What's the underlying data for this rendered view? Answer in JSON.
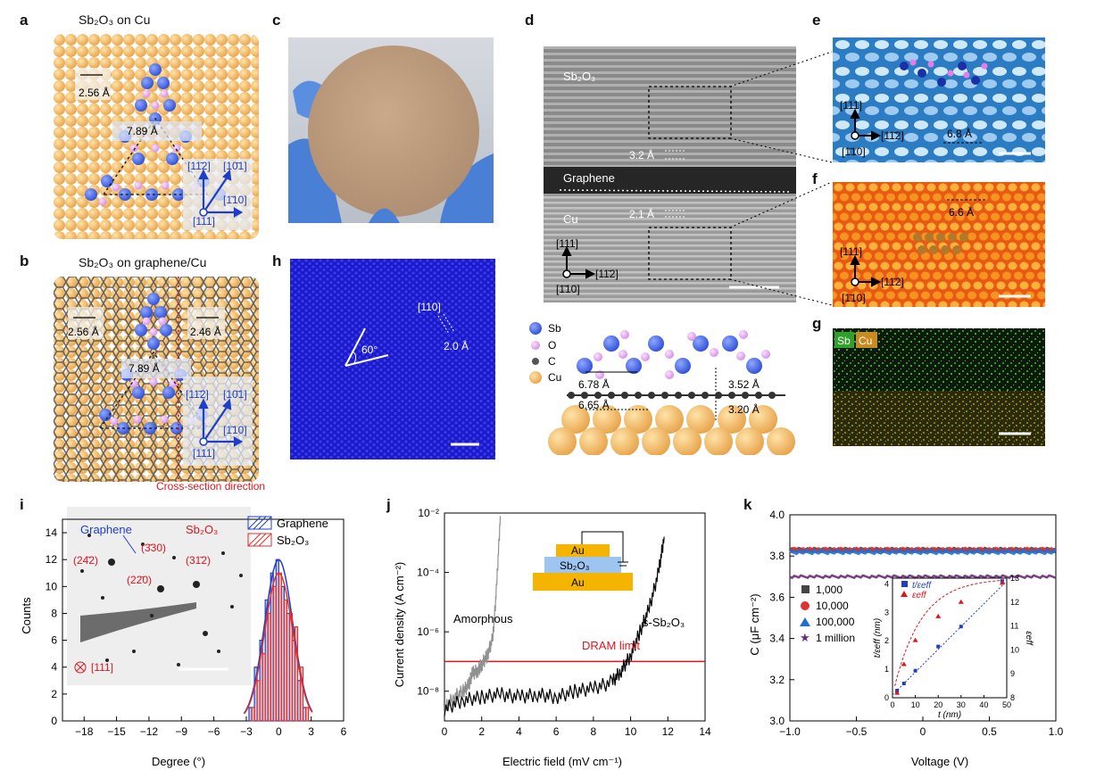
{
  "panels": {
    "a": {
      "label": "a",
      "title": "Sb₂O₃ on Cu",
      "d1": "2.56 Å",
      "d2": "7.89 Å",
      "dir1": "[11̄2]",
      "dir2": "[10̄1]",
      "dir3": "[1̄10]",
      "zone": "[111]"
    },
    "b": {
      "label": "b",
      "title": "Sb₂O₃ on graphene/Cu",
      "d1": "2.56 Å",
      "d2": "2.46 Å",
      "d3": "7.89 Å",
      "dir1": "[11̄2]",
      "dir2": "[10̄1]",
      "dir3": "[1̄10]",
      "zone": "[111]",
      "cross": "Cross-section direction"
    },
    "c": {
      "label": "c"
    },
    "d": {
      "label": "d",
      "layer1": "Sb₂O₃",
      "layer2": "Graphene",
      "layer3": "Cu",
      "s1": "3.2 Å",
      "s2": "2.1 Å",
      "ax1": "[111]",
      "ax2": "[11̄2]",
      "ax3": "[1̄10]",
      "legend": [
        "Sb",
        "O",
        "C",
        "Cu"
      ],
      "m1": "6.78 Å",
      "m2": "6.65 Å",
      "m3": "3.52 Å",
      "m4": "3.20 Å"
    },
    "e": {
      "label": "e",
      "ax1": "[111]",
      "ax2": "[11̄2]",
      "ax3": "[1̄10]",
      "d": "6.8 Å"
    },
    "f": {
      "label": "f",
      "ax1": "[111]",
      "ax2": "[11̄2]",
      "ax3": "[1̄10]",
      "d": "6.6 Å"
    },
    "g": {
      "label": "g",
      "el1": "Sb",
      "el2": "Cu"
    },
    "h": {
      "label": "h",
      "dir": "[110]",
      "angle": "60°",
      "d": "2.0 Å"
    },
    "i": {
      "label": "i",
      "inset_g": "Graphene",
      "inset_s": "Sb₂O₃",
      "spots": [
        "(3̄30)",
        "(24̄2)",
        "(31̄2)",
        "(22̄0)"
      ],
      "zone": "[111]"
    },
    "j": {
      "label": "j",
      "stack": [
        "Au",
        "Sb₂O₃",
        "Au"
      ],
      "amorph": "Amorphous",
      "cryst": "s-Sb₂O₃",
      "limit": "DRAM limit"
    },
    "k": {
      "label": "k",
      "inset_s1": "t/εeff",
      "inset_s2": "εeff",
      "inset_x": "t (nm)",
      "inset_yl": "t/εeff (nm)",
      "inset_yr": "εeff"
    }
  },
  "chart_data": [
    {
      "type": "bar",
      "panel": "i",
      "xlabel": "Degree (°)",
      "ylabel": "Counts",
      "xlim": [
        -20,
        6
      ],
      "ylim": [
        0,
        15
      ],
      "xticks": [
        -18,
        -15,
        -12,
        -9,
        -6,
        -3,
        0,
        3,
        6
      ],
      "yticks": [
        0,
        2,
        4,
        6,
        8,
        10,
        12,
        14
      ],
      "categories": [
        -2.5,
        -2,
        -1.5,
        -1,
        -0.5,
        0,
        0.5,
        1,
        1.5,
        2,
        2.5
      ],
      "series": [
        {
          "name": "Graphene",
          "color": "#1f3fbf",
          "values": [
            1,
            4,
            6,
            9,
            11,
            12,
            10,
            8,
            6,
            3,
            1
          ]
        },
        {
          "name": "Sb₂O₃",
          "color": "#e03030",
          "values": [
            1,
            3,
            5,
            8,
            10,
            11,
            9,
            8,
            7,
            4,
            1
          ]
        }
      ]
    },
    {
      "type": "line",
      "panel": "j",
      "xlabel": "Electric field (mV cm⁻¹)",
      "ylabel": "Current density (A cm⁻²)",
      "xlim": [
        0,
        14
      ],
      "ylog": [
        -9,
        -2
      ],
      "xticks": [
        0,
        2,
        4,
        6,
        8,
        10,
        12,
        14
      ],
      "ytick_labels": [
        "10⁻²",
        "10⁻⁴",
        "10⁻⁶",
        "10⁻⁸"
      ],
      "ytick_exp": [
        -2,
        -4,
        -6,
        -8
      ],
      "dram_limit": -7,
      "series": [
        {
          "name": "Amorphous",
          "color": "#909090",
          "x": [
            0,
            0.5,
            1.0,
            1.3,
            1.5,
            1.8,
            2.0,
            2.3,
            2.6,
            2.8,
            3.0
          ],
          "logy": [
            -8.6,
            -8.2,
            -8.0,
            -7.8,
            -7.4,
            -7.3,
            -7.1,
            -6.8,
            -6.2,
            -4.5,
            -2.1
          ]
        },
        {
          "name": "s-Sb₂O₃",
          "color": "#000000",
          "x": [
            0,
            1,
            2,
            3,
            4,
            5,
            6,
            7,
            8,
            9,
            9.5,
            10,
            10.5,
            11,
            11.5,
            11.8
          ],
          "logy": [
            -8.6,
            -8.3,
            -8.2,
            -8.1,
            -8.2,
            -8.1,
            -8.2,
            -8.0,
            -7.9,
            -7.7,
            -7.3,
            -6.8,
            -6.0,
            -5.2,
            -4.0,
            -2.8
          ]
        }
      ]
    },
    {
      "type": "scatter",
      "panel": "k",
      "xlabel": "Voltage (V)",
      "ylabel": "C (μF cm⁻²)",
      "xlim": [
        -1.0,
        1.0
      ],
      "ylim": [
        3.0,
        4.0
      ],
      "xticks": [
        -1.0,
        -0.5,
        0,
        0.5,
        1.0
      ],
      "xtick_labels": [
        "−1.0",
        "−0.5",
        "0",
        "0.5",
        "1.0"
      ],
      "yticks": [
        3.0,
        3.2,
        3.4,
        3.6,
        3.8,
        4.0
      ],
      "series": [
        {
          "name": "1,000",
          "color": "#444444",
          "value": 3.83
        },
        {
          "name": "10,000",
          "color": "#e03030",
          "value": 3.83
        },
        {
          "name": "100,000",
          "color": "#1f6fd0",
          "value": 3.82
        },
        {
          "name": "1 million",
          "color": "#6a2a7a",
          "value": 3.7
        }
      ],
      "inset": {
        "xlabel": "t (nm)",
        "xlim": [
          0,
          50
        ],
        "xticks": [
          0,
          10,
          20,
          30,
          40,
          50
        ],
        "ylim_left": [
          0,
          4.2
        ],
        "yticks_left": [
          0,
          1,
          2,
          3,
          4
        ],
        "ylim_right": [
          8,
          13
        ],
        "yticks_right": [
          8,
          9,
          10,
          11,
          12,
          13
        ],
        "t": [
          2,
          5,
          10,
          20,
          30,
          48
        ],
        "t_over_eps": [
          0.25,
          0.5,
          0.95,
          1.8,
          2.5,
          4.1
        ],
        "eps": [
          8.2,
          9.4,
          10.4,
          11.4,
          12.0,
          12.8
        ]
      }
    }
  ]
}
